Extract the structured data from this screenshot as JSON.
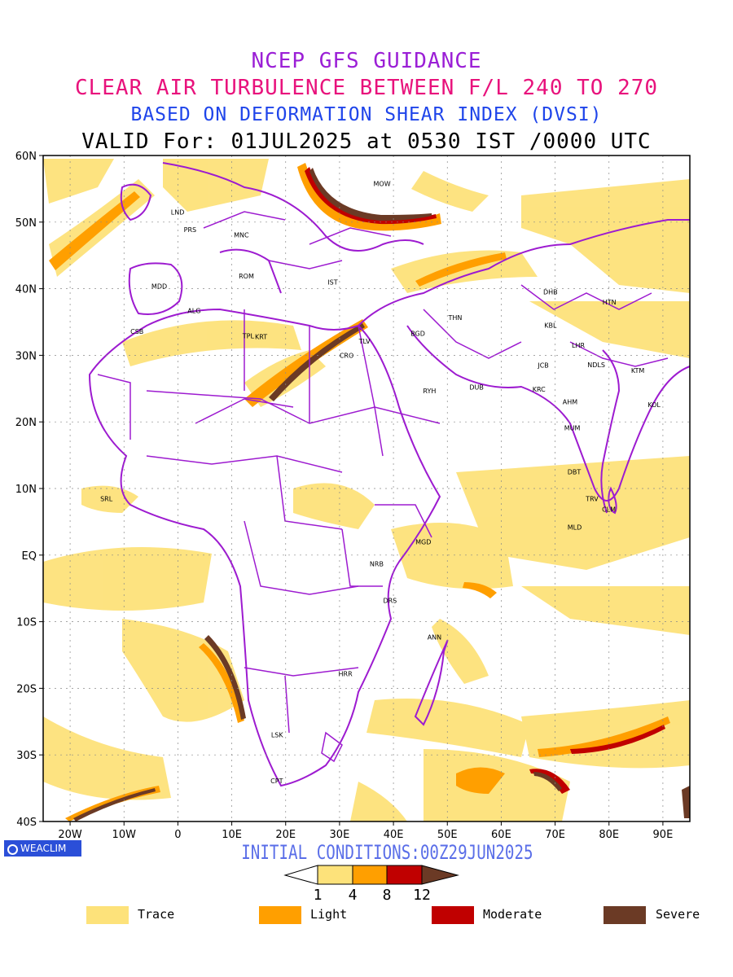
{
  "header": {
    "line1": "NCEP GFS GUIDANCE",
    "line2": "CLEAR AIR TURBULENCE BETWEEN F/L 240 TO 270",
    "line3": "BASED ON DEFORMATION SHEAR INDEX (DVSI)",
    "line4": "VALID For: 01JUL2025 at 0530 IST /0000 UTC"
  },
  "map": {
    "lat_labels": [
      "60N",
      "50N",
      "40N",
      "30N",
      "20N",
      "10N",
      "EQ",
      "10S",
      "20S",
      "30S",
      "40S"
    ],
    "lon_labels": [
      "20W",
      "10W",
      "0",
      "10E",
      "20E",
      "30E",
      "40E",
      "50E",
      "60E",
      "70E",
      "80E",
      "90E"
    ],
    "cities": [
      {
        "code": "MOW",
        "lon": 37.5,
        "lat": 55.8
      },
      {
        "code": "LND",
        "lon": -0.1,
        "lat": 51.5
      },
      {
        "code": "PRS",
        "lon": 2.3,
        "lat": 48.9
      },
      {
        "code": "MNC",
        "lon": 11.6,
        "lat": 48.1
      },
      {
        "code": "ROM",
        "lon": 12.5,
        "lat": 41.9
      },
      {
        "code": "MDD",
        "lon": -3.7,
        "lat": 40.4
      },
      {
        "code": "IST",
        "lon": 29.0,
        "lat": 41.0
      },
      {
        "code": "ALG",
        "lon": 3.0,
        "lat": 36.7
      },
      {
        "code": "CSB",
        "lon": -7.6,
        "lat": 33.6
      },
      {
        "code": "TPL",
        "lon": 13.2,
        "lat": 32.9
      },
      {
        "code": "KRT",
        "lon": 15.5,
        "lat": 32.8
      },
      {
        "code": "CRO",
        "lon": 31.2,
        "lat": 30.0
      },
      {
        "code": "TLV",
        "lon": 34.8,
        "lat": 32.1
      },
      {
        "code": "THN",
        "lon": 51.4,
        "lat": 35.7
      },
      {
        "code": "BGD",
        "lon": 44.4,
        "lat": 33.3
      },
      {
        "code": "DHB",
        "lon": 69.0,
        "lat": 39.5
      },
      {
        "code": "KBL",
        "lon": 69.2,
        "lat": 34.5
      },
      {
        "code": "HTN",
        "lon": 80.0,
        "lat": 38.0
      },
      {
        "code": "LHR",
        "lon": 74.3,
        "lat": 31.5
      },
      {
        "code": "NDLS",
        "lon": 77.2,
        "lat": 28.6
      },
      {
        "code": "JCB",
        "lon": 68.0,
        "lat": 28.5
      },
      {
        "code": "KTM",
        "lon": 85.3,
        "lat": 27.7
      },
      {
        "code": "RYH",
        "lon": 46.7,
        "lat": 24.7
      },
      {
        "code": "DUB",
        "lon": 55.3,
        "lat": 25.2
      },
      {
        "code": "KRC",
        "lon": 67.0,
        "lat": 24.9
      },
      {
        "code": "AHM",
        "lon": 72.6,
        "lat": 23.0
      },
      {
        "code": "KOL",
        "lon": 88.4,
        "lat": 22.6
      },
      {
        "code": "MUM",
        "lon": 72.9,
        "lat": 19.1
      },
      {
        "code": "DBT",
        "lon": 73.5,
        "lat": 12.5
      },
      {
        "code": "TRV",
        "lon": 76.9,
        "lat": 8.5
      },
      {
        "code": "CLM",
        "lon": 79.9,
        "lat": 6.9
      },
      {
        "code": "MLD",
        "lon": 73.5,
        "lat": 4.2
      },
      {
        "code": "SRL",
        "lon": -13.2,
        "lat": 8.5
      },
      {
        "code": "MGD",
        "lon": 45.3,
        "lat": 2.0
      },
      {
        "code": "NRB",
        "lon": 36.8,
        "lat": -1.3
      },
      {
        "code": "DRS",
        "lon": 39.3,
        "lat": -6.8
      },
      {
        "code": "ANN",
        "lon": 47.5,
        "lat": -12.3
      },
      {
        "code": "HRR",
        "lon": 31.0,
        "lat": -17.8
      },
      {
        "code": "LSK",
        "lon": 18.5,
        "lat": -27.0
      },
      {
        "code": "CPT",
        "lon": 18.4,
        "lat": -33.9
      }
    ]
  },
  "branding": {
    "label": "WEACLIM"
  },
  "footer": {
    "initial_conditions": "INITIAL CONDITIONS:00Z29JUN2025"
  },
  "colorbar": {
    "ticks": [
      "1",
      "4",
      "8",
      "12"
    ],
    "colors": [
      "#fde27a",
      "#ff9f00",
      "#c00000",
      "#6b3a25"
    ]
  },
  "legend": [
    {
      "label": "Trace",
      "color": "#fde27a"
    },
    {
      "label": "Light",
      "color": "#ff9f00"
    },
    {
      "label": "Moderate",
      "color": "#c00000"
    },
    {
      "label": "Severe",
      "color": "#6b3a25"
    }
  ]
}
